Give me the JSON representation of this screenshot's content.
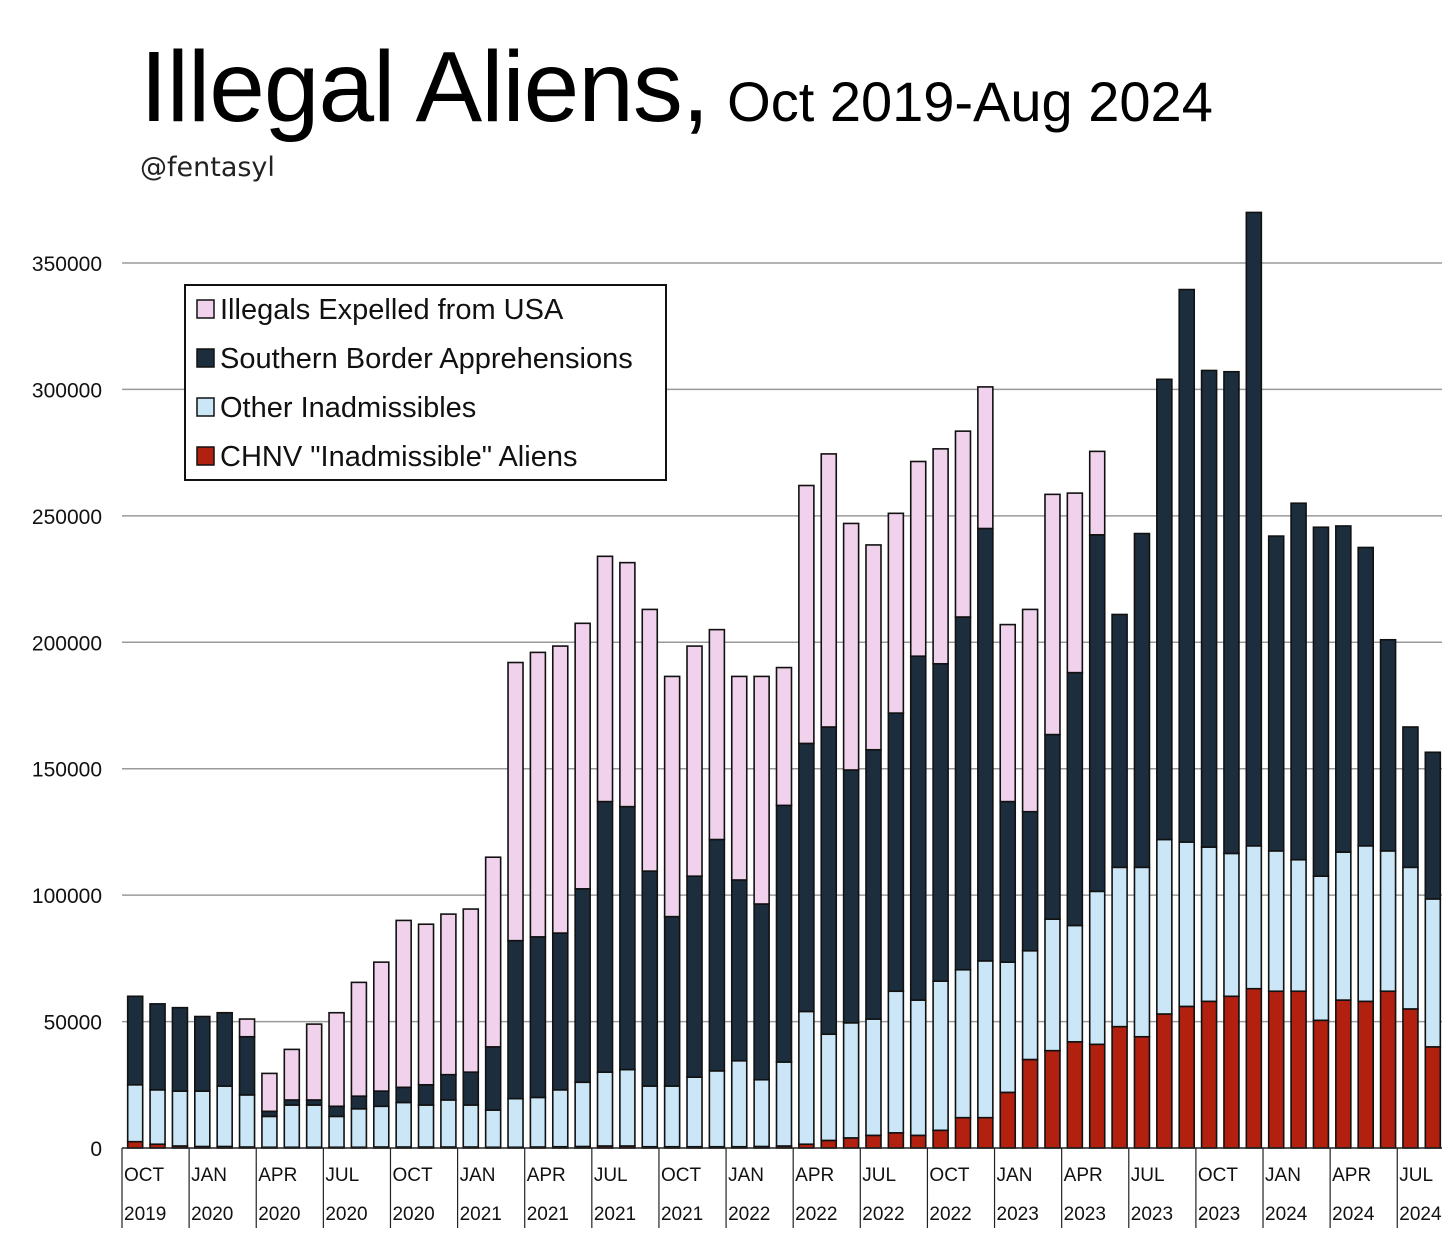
{
  "header": {
    "title": "Illegal Aliens,",
    "subtitle": "Oct 2019-Aug 2024",
    "credit": "@fentasyl"
  },
  "colors": {
    "expelled": "#f0d2ec",
    "southern": "#1c2e3e",
    "other": "#cbe6f6",
    "chnv": "#b22010",
    "grid": "#9a9a9a",
    "outline": "#111111"
  },
  "chart_data": {
    "type": "bar",
    "stacked": true,
    "ylim": [
      0,
      370000
    ],
    "yticks": [
      0,
      50000,
      100000,
      150000,
      200000,
      250000,
      300000,
      350000
    ],
    "grid": true,
    "legend_placement": "top-left",
    "xlabels": [
      {
        "index": 0,
        "month": "OCT",
        "year": "2019"
      },
      {
        "index": 3,
        "month": "JAN",
        "year": "2020"
      },
      {
        "index": 6,
        "month": "APR",
        "year": "2020"
      },
      {
        "index": 9,
        "month": "JUL",
        "year": "2020"
      },
      {
        "index": 12,
        "month": "OCT",
        "year": "2020"
      },
      {
        "index": 15,
        "month": "JAN",
        "year": "2021"
      },
      {
        "index": 18,
        "month": "APR",
        "year": "2021"
      },
      {
        "index": 21,
        "month": "JUL",
        "year": "2021"
      },
      {
        "index": 24,
        "month": "OCT",
        "year": "2021"
      },
      {
        "index": 27,
        "month": "JAN",
        "year": "2022"
      },
      {
        "index": 30,
        "month": "APR",
        "year": "2022"
      },
      {
        "index": 33,
        "month": "JUL",
        "year": "2022"
      },
      {
        "index": 36,
        "month": "OCT",
        "year": "2022"
      },
      {
        "index": 39,
        "month": "JAN",
        "year": "2023"
      },
      {
        "index": 42,
        "month": "APR",
        "year": "2023"
      },
      {
        "index": 45,
        "month": "JUL",
        "year": "2023"
      },
      {
        "index": 48,
        "month": "OCT",
        "year": "2023"
      },
      {
        "index": 51,
        "month": "JAN",
        "year": "2024"
      },
      {
        "index": 54,
        "month": "APR",
        "year": "2024"
      },
      {
        "index": 57,
        "month": "JUL",
        "year": "2024"
      }
    ],
    "series": [
      {
        "name": "CHNV \"Inadmissible\" Aliens",
        "color": "#b22010",
        "values": [
          2500,
          1500,
          800,
          600,
          600,
          400,
          300,
          300,
          300,
          300,
          300,
          400,
          400,
          400,
          400,
          400,
          300,
          300,
          400,
          500,
          600,
          800,
          800,
          500,
          500,
          500,
          500,
          500,
          600,
          800,
          1500,
          3000,
          4000,
          5000,
          6000,
          5000,
          7000,
          12000,
          12000,
          22000,
          35000,
          38500,
          42000,
          41000,
          48000,
          44000,
          53000,
          56000,
          58000,
          60000,
          63000,
          62000,
          62000,
          50500,
          58500,
          58000,
          62000,
          55000,
          40000
        ]
      },
      {
        "name": "Other Inadmissibles",
        "color": "#cbe6f6",
        "values": [
          22500,
          21500,
          21700,
          21900,
          23900,
          20600,
          12200,
          16700,
          16700,
          12200,
          15200,
          16100,
          17600,
          16600,
          18600,
          16600,
          14700,
          19200,
          19600,
          22500,
          25400,
          29200,
          30200,
          24000,
          24000,
          27500,
          30000,
          34000,
          26400,
          33200,
          52500,
          42000,
          45500,
          46000,
          56000,
          53500,
          59000,
          58500,
          62000,
          51500,
          43000,
          52000,
          46000,
          60500,
          63000,
          67000,
          69000,
          65000,
          61000,
          56500,
          56500,
          55500,
          52000,
          57000,
          58500,
          61500,
          55500,
          56000,
          58500
        ]
      },
      {
        "name": "Southern Border Apprehensions",
        "color": "#1c2e3e",
        "values": [
          35000,
          34000,
          33000,
          29500,
          29000,
          23000,
          2000,
          2000,
          2000,
          4000,
          5000,
          6000,
          6000,
          8000,
          10000,
          13000,
          25000,
          62500,
          63500,
          62000,
          76500,
          107000,
          104000,
          85000,
          67000,
          79500,
          91500,
          71500,
          69500,
          101500,
          106000,
          121500,
          100000,
          106500,
          110000,
          136000,
          125500,
          139500,
          171000,
          63500,
          55000,
          73000,
          100000,
          141000,
          100000,
          132000,
          182000,
          218500,
          188500,
          190500,
          250500,
          124500,
          141000,
          138000,
          129000,
          118000,
          83500,
          55500,
          58000
        ]
      },
      {
        "name": "Illegals Expelled from USA",
        "color": "#f0d2ec",
        "values": [
          0,
          0,
          0,
          0,
          0,
          7000,
          15000,
          20000,
          30000,
          37000,
          45000,
          51000,
          66000,
          63500,
          63500,
          64500,
          75000,
          110000,
          112500,
          113500,
          105000,
          97000,
          96500,
          103500,
          95000,
          91000,
          83000,
          80500,
          90000,
          54500,
          102000,
          108000,
          97500,
          81000,
          79000,
          77000,
          85000,
          73500,
          56000,
          70000,
          80000,
          95000,
          71000,
          33000,
          0,
          0,
          0,
          0,
          0,
          0,
          0,
          0,
          0,
          0,
          0,
          0,
          0,
          0,
          0
        ]
      }
    ]
  }
}
